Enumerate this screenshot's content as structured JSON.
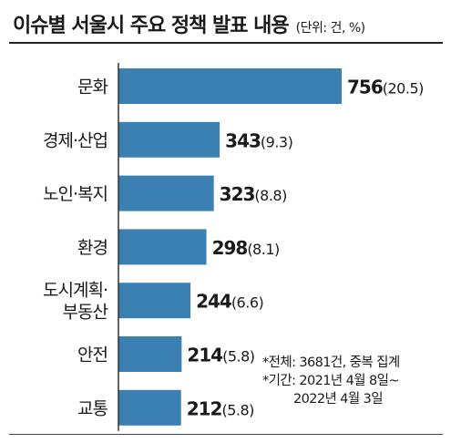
{
  "header": {
    "title": "이슈별 서울시 주요 정책 발표 내용",
    "unit": "(단위: 건, %)"
  },
  "notes": {
    "total": "*전체: 3681건, 중복 집계",
    "period_1": "*기간: 2021년 4월 8일~",
    "period_2": "2022년 4월 3일"
  },
  "colors": {
    "bar": "#3b80b3",
    "rule": "#222222"
  },
  "chart_data": {
    "type": "bar",
    "orientation": "horizontal",
    "title": "이슈별 서울시 주요 정책 발표 내용",
    "unit": "(단위: 건, %)",
    "categories": [
      [
        "문화"
      ],
      [
        "경제·산업"
      ],
      [
        "노인·복지"
      ],
      [
        "환경"
      ],
      [
        "도시계획·",
        "부동산"
      ],
      [
        "안전"
      ],
      [
        "교통"
      ]
    ],
    "values": [
      756,
      343,
      323,
      298,
      244,
      214,
      212
    ],
    "labels": [
      "756",
      "343",
      "323",
      "298",
      "244",
      "214",
      "212"
    ],
    "sublabels": [
      "(20.5)",
      "(9.3)",
      "(8.8)",
      "(8.1)",
      "(6.6)",
      "(5.8)",
      "(5.8)"
    ],
    "xlim": [
      0,
      756
    ],
    "grid": false,
    "legend": "none"
  }
}
